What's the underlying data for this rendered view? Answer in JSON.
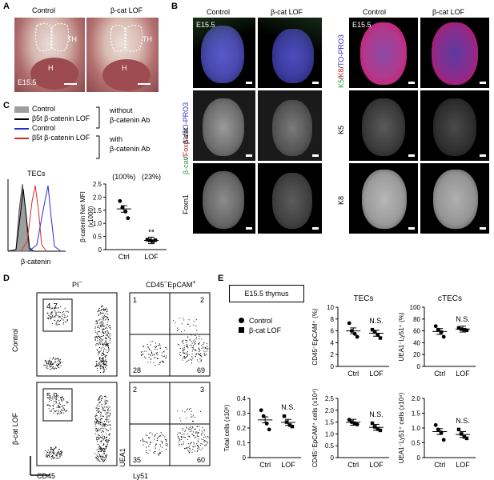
{
  "panelA": {
    "label": "A",
    "col_control": "Control",
    "col_lof": "β-cat LOF",
    "stage": "E15.5",
    "th": "TH",
    "h": "H"
  },
  "panelB": {
    "label": "B",
    "col_control": "Control",
    "col_lof": "β-cat LOF",
    "stage": "E15.5",
    "stain_left": {
      "p1": "β-cat",
      "p2": "/",
      "p3": "Foxn1",
      "p4": "/",
      "p5": "TO-PRO3"
    },
    "stain_right": {
      "p1": "K5",
      "p2": "/",
      "p3": "K8",
      "p4": "/",
      "p5": "TO-PRO3"
    },
    "row_bcat": "β-cat",
    "row_foxn1": "Foxn1",
    "row_k5": "K5",
    "row_k8": "K8"
  },
  "panelC": {
    "label": "C",
    "legend": [
      "Control",
      "β5t β-catenin LOF",
      "Control",
      "β5t β-catenin LOF"
    ],
    "legend_colors": [
      "#9e9e9e",
      "#000000",
      "#2b2bd6",
      "#d62b2b"
    ],
    "bracket_without": [
      "without",
      "β-catenin Ab"
    ],
    "bracket_with": [
      "with",
      "β-catenin Ab"
    ],
    "hist_title": "TECs",
    "hist_xlabel": "β-catenin",
    "pct_ctrl": "(100%)",
    "pct_lof": "(23%)",
    "ylabel": "β-catenin Net MFI",
    "ylabel2": "(x1000)",
    "yticks": [
      "0",
      "0.5",
      "1.0",
      "1.5",
      "2.0",
      "2.5"
    ],
    "xcats": [
      "Ctrl",
      "LOF"
    ],
    "sig": "**"
  },
  "panelD": {
    "label": "D",
    "col1": "PI",
    "col1_sup": "−",
    "col2_pre": "CD45",
    "col2_sup1": "−",
    "col2_mid": "EpCAM",
    "col2_sup2": "+",
    "row_control": "Control",
    "row_lof": "β-cat LOF",
    "gate_ctrl": "4.7",
    "gate_lof": "5.9",
    "quad_ctrl": [
      "1",
      "2",
      "28",
      "69"
    ],
    "quad_lof": [
      "2",
      "3",
      "35",
      "60"
    ],
    "ax_y1": "EpCAM",
    "ax_x1": "CD45",
    "ax_y2": "UEA1",
    "ax_x2": "Ly51"
  },
  "panelE": {
    "label": "E",
    "box_title": "E15.5 thymus",
    "legend_ctrl": "Control",
    "legend_lof": "β-cat LOF",
    "title_tecs": "TECs",
    "title_ctecs": "cTECs",
    "ns": "N.S.",
    "xcats": [
      "Ctrl",
      "LOF"
    ],
    "yl_tec_pct": "CD45⁻EpCAM⁺ (%)",
    "yl_ctec_pct": "UEA1⁻Ly51⁺ (%)",
    "yl_total": "Total cells (x10⁶)",
    "yl_tec_n": "CD45⁻EpCAM⁺ cells (x10⁴)",
    "yl_ctec_n": "UEA1⁻Ly51⁺ cells (x10⁴)",
    "ticks_tec_pct": [
      "0",
      "2",
      "4",
      "6",
      "8",
      "10"
    ],
    "ticks_ctec_pct": [
      "0",
      "20",
      "40",
      "60",
      "80",
      "100"
    ],
    "ticks_total": [
      "0",
      "0.1",
      "0.2",
      "0.3",
      "0.4"
    ],
    "ticks_tec_n": [
      "0",
      "0.5",
      "1.0",
      "1.5",
      "2.0",
      "2.5"
    ],
    "ticks_ctec_n": [
      "0",
      "0.5",
      "1.0",
      "1.5",
      "2.0"
    ]
  },
  "chart_data": [
    {
      "type": "scatter",
      "title": "",
      "ylabel": "β-catenin Net MFI (x1000)",
      "ylim": [
        0,
        2.5
      ],
      "categories": [
        "Ctrl",
        "LOF"
      ],
      "series": [
        {
          "name": "Control",
          "values": [
            1.85,
            1.6,
            1.45,
            1.2
          ]
        },
        {
          "name": "β-cat LOF",
          "values": [
            0.38,
            0.35,
            0.32,
            0.36
          ]
        }
      ],
      "means": [
        1.55,
        0.35
      ]
    },
    {
      "type": "scatter",
      "title": "TECs",
      "ylabel": "CD45⁻EpCAM⁺ (%)",
      "ylim": [
        0,
        10
      ],
      "categories": [
        "Ctrl",
        "LOF"
      ],
      "series": [
        {
          "name": "Control",
          "values": [
            7.3,
            6.0,
            5.5,
            5.0
          ]
        },
        {
          "name": "β-cat LOF",
          "values": [
            6.2,
            5.8,
            5.3,
            4.8
          ]
        }
      ],
      "means": [
        6.0,
        5.6
      ]
    },
    {
      "type": "scatter",
      "title": "cTECs",
      "ylabel": "UEA1⁻Ly51⁺ (%)",
      "ylim": [
        0,
        100
      ],
      "categories": [
        "Ctrl",
        "LOF"
      ],
      "series": [
        {
          "name": "Control",
          "values": [
            68,
            62,
            58,
            50
          ]
        },
        {
          "name": "β-cat LOF",
          "values": [
            65,
            63,
            62,
            61
          ]
        }
      ],
      "means": [
        59,
        63
      ]
    },
    {
      "type": "scatter",
      "title": "",
      "ylabel": "Total cells (x10⁶)",
      "ylim": [
        0,
        0.4
      ],
      "categories": [
        "Ctrl",
        "LOF"
      ],
      "series": [
        {
          "name": "Control",
          "values": [
            0.32,
            0.28,
            0.23,
            0.19
          ]
        },
        {
          "name": "β-cat LOF",
          "values": [
            0.28,
            0.24,
            0.22,
            0.21
          ]
        }
      ],
      "means": [
        0.255,
        0.238
      ]
    },
    {
      "type": "scatter",
      "title": "",
      "ylabel": "CD45⁻EpCAM⁺ cells (x10⁴)",
      "ylim": [
        0,
        2.5
      ],
      "categories": [
        "Ctrl",
        "LOF"
      ],
      "series": [
        {
          "name": "Control",
          "values": [
            1.6,
            1.5,
            1.45,
            1.4
          ]
        },
        {
          "name": "β-cat LOF",
          "values": [
            1.45,
            1.3,
            1.2,
            1.15
          ]
        }
      ],
      "means": [
        1.49,
        1.28
      ]
    },
    {
      "type": "scatter",
      "title": "",
      "ylabel": "UEA1⁻Ly51⁺ cells (x10⁴)",
      "ylim": [
        0,
        2.0
      ],
      "categories": [
        "Ctrl",
        "LOF"
      ],
      "series": [
        {
          "name": "Control",
          "values": [
            1.1,
            0.95,
            0.85,
            0.6
          ]
        },
        {
          "name": "β-cat LOF",
          "values": [
            0.95,
            0.8,
            0.7,
            0.65
          ]
        }
      ],
      "means": [
        0.88,
        0.78
      ]
    }
  ]
}
